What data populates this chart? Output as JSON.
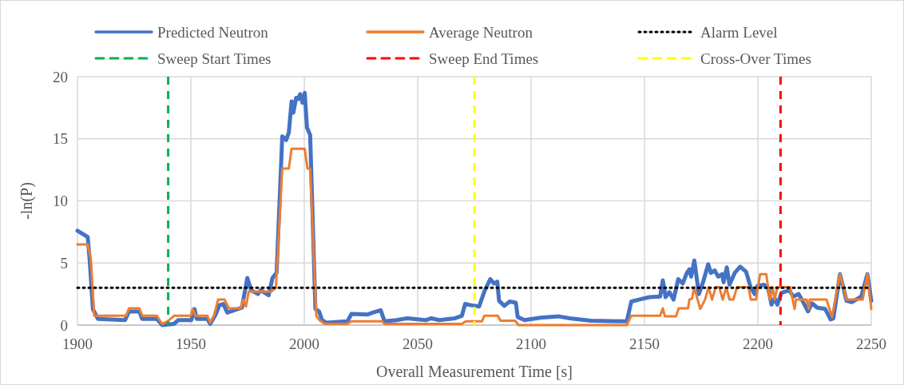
{
  "chart_data": {
    "type": "line",
    "xlabel": "Overall Measurement Time [s]",
    "ylabel": "-ln(P)",
    "xlim": [
      1900,
      2250
    ],
    "xticks": [
      1900,
      1950,
      2000,
      2050,
      2100,
      2150,
      2200,
      2250
    ],
    "ylim": [
      0,
      20
    ],
    "yticks": [
      0,
      5,
      10,
      15,
      20
    ],
    "grid": true,
    "legend": "top",
    "line_style": "solid",
    "marker": "none",
    "series": [
      {
        "name": "Predicted Neutron",
        "color": "#4472c4",
        "x": [
          1900,
          1904.5,
          1905.4,
          1906.8,
          1909,
          1921,
          1922.7,
          1927.3,
          1928.5,
          1935,
          1937.3,
          1942.6,
          1944.4,
          1950.2,
          1951.6,
          1952.6,
          1957.3,
          1958.5,
          1960.8,
          1962.6,
          1964.3,
          1966.1,
          1972.5,
          1974.9,
          1976.6,
          1979.6,
          1980.8,
          1984.3,
          1986,
          1987.8,
          1990.3,
          1992,
          1993.2,
          1994.4,
          1995.2,
          1996.4,
          1997.3,
          1998.2,
          1999.2,
          2000.2,
          2001.2,
          2002.6,
          2004.9,
          2006.5,
          2007.9,
          2009.6,
          2019,
          2020.8,
          2027.8,
          2030.2,
          2033.7,
          2035.4,
          2040.7,
          2045.4,
          2053.6,
          2056,
          2059.5,
          2066.5,
          2069.5,
          2070.9,
          2073.6,
          2077.1,
          2079.4,
          2082,
          2083.6,
          2085.1,
          2085.9,
          2088.2,
          2090.6,
          2093.3,
          2094.1,
          2097.1,
          2104.1,
          2112.3,
          2117,
          2126.4,
          2142.2,
          2144.2,
          2147.5,
          2152.2,
          2156.9,
          2158.1,
          2159.3,
          2161,
          2162.8,
          2164.9,
          2166.9,
          2168.7,
          2169.8,
          2170.6,
          2172,
          2174,
          2176,
          2178.1,
          2179.3,
          2181,
          2182.5,
          2184.2,
          2184.9,
          2186.3,
          2187.5,
          2189.8,
          2192.2,
          2194.8,
          2196.9,
          2198.6,
          2199.8,
          2202.7,
          2204.5,
          2206,
          2207.4,
          2208.6,
          2210.4,
          2213.9,
          2215.6,
          2218,
          2219.4,
          2222.1,
          2223.9,
          2226.2,
          2229.7,
          2232.1,
          2233.3,
          2236.2,
          2239.1,
          2241.5,
          2245.6,
          2248.3,
          2250
        ],
        "values": [
          7.6,
          7.1,
          5.2,
          1.3,
          0.5,
          0.4,
          1.1,
          1.1,
          0.5,
          0.5,
          0,
          0.1,
          0.4,
          0.4,
          1.3,
          0.5,
          0.5,
          0.1,
          0.8,
          1.6,
          1.7,
          1,
          1.4,
          3.8,
          2.8,
          2.5,
          2.8,
          2.4,
          3.8,
          4.2,
          15.2,
          14.9,
          15.5,
          18,
          17.1,
          18.3,
          18.2,
          18.6,
          17.9,
          18.7,
          15.9,
          15.3,
          1.3,
          1.1,
          0.4,
          0.2,
          0.3,
          0.9,
          0.85,
          1,
          1.2,
          0.3,
          0.4,
          0.55,
          0.4,
          0.55,
          0.4,
          0.55,
          0.75,
          1.7,
          1.6,
          1.5,
          2.7,
          3.7,
          3.35,
          3.5,
          1.95,
          1.55,
          1.9,
          1.8,
          0.65,
          0.4,
          0.6,
          0.7,
          0.55,
          0.35,
          0.3,
          1.9,
          2.05,
          2.25,
          2.3,
          3.6,
          2.25,
          2.65,
          2.05,
          3.7,
          3.35,
          4.2,
          4.5,
          3.9,
          5.2,
          2.5,
          3.55,
          4.9,
          4.2,
          4.4,
          3.9,
          4.1,
          3.45,
          4.65,
          3.25,
          4.2,
          4.7,
          4.3,
          3,
          2.5,
          3.15,
          3.25,
          3,
          1.65,
          2.15,
          1.65,
          2.6,
          2.8,
          2.3,
          2.5,
          2.05,
          1.1,
          1.75,
          1.4,
          1.3,
          0.45,
          0.55,
          4.1,
          1.95,
          1.85,
          2.3,
          4.1,
          1.95
        ]
      },
      {
        "name": "Average Neutron",
        "color": "#ed7d31",
        "x": [
          1900,
          1904.5,
          1905.9,
          1907.4,
          1921.5,
          1922.7,
          1927.3,
          1928.5,
          1935,
          1937.3,
          1939.7,
          1942.6,
          1950,
          1950.8,
          1952,
          1957.3,
          1958.5,
          1960.2,
          1962,
          1964.9,
          1966.7,
          1972,
          1973.2,
          1974.3,
          1975.5,
          1985.4,
          1987.5,
          1990.3,
          1993.2,
          1994.4,
          2000.2,
          2001.4,
          2002.6,
          2005.3,
          2006.7,
          2009,
          2019,
          2020.8,
          2034.3,
          2035.4,
          2069.5,
          2071.2,
          2078.3,
          2079.4,
          2085.3,
          2086.5,
          2092.9,
          2094.5,
          2142.2,
          2144.2,
          2156.9,
          2158.1,
          2159,
          2163.9,
          2165.1,
          2169.2,
          2169.8,
          2171,
          2171.9,
          2174.6,
          2176.7,
          2178.3,
          2179.8,
          2181.4,
          2183,
          2184.5,
          2186.1,
          2187.5,
          2189.2,
          2190.8,
          2195.9,
          2196.9,
          2199.2,
          2201,
          2203.7,
          2205.3,
          2206.5,
          2207.4,
          2208.6,
          2214.2,
          2216.2,
          2216.8,
          2221.5,
          2222.5,
          2222.9,
          2230.3,
          2232.7,
          2236.2,
          2239.1,
          2246.2,
          2248.3,
          2250
        ],
        "values": [
          6.5,
          6.5,
          5.3,
          0.75,
          0.75,
          1.35,
          1.35,
          0.75,
          0.75,
          0.1,
          0.3,
          0.75,
          0.75,
          1.3,
          0.75,
          0.75,
          0.2,
          0.75,
          2.05,
          2.05,
          1.35,
          1.35,
          2.05,
          1.5,
          2.7,
          2.7,
          3,
          12.6,
          12.6,
          14.2,
          14.2,
          12.6,
          12.6,
          0.75,
          0.4,
          0.1,
          0.1,
          0.3,
          0.3,
          0.1,
          0.1,
          0.3,
          0.3,
          0.75,
          0.75,
          0.35,
          0.35,
          0,
          0,
          0.75,
          0.75,
          1.35,
          0.7,
          0.7,
          1.35,
          1.35,
          2.05,
          2.15,
          3.05,
          1.3,
          2.05,
          3.05,
          2.05,
          3.05,
          3.05,
          2.05,
          3.05,
          2.05,
          2.05,
          3.05,
          3.05,
          2.05,
          2.05,
          4.1,
          4.1,
          2.05,
          3.05,
          2.05,
          3.05,
          3.05,
          1.3,
          2.05,
          2.05,
          1.3,
          2.05,
          2.05,
          0.65,
          4.1,
          2.05,
          2.05,
          4.1,
          1.3
        ]
      }
    ],
    "ref_lines": [
      {
        "axis": "y",
        "value": 3,
        "label": "Alarm Level",
        "color": "#000000",
        "line_style": "dotted"
      },
      {
        "axis": "x",
        "value": 1940,
        "label": "Sweep Start Times",
        "color": "#00b050",
        "line_style": "dashed"
      },
      {
        "axis": "x",
        "value": 2210,
        "label": "Sweep End Times",
        "color": "#ff0000",
        "line_style": "dashed"
      },
      {
        "axis": "x",
        "value": 2075,
        "label": "Cross-Over Times",
        "color": "#ffff00",
        "line_style": "dashed"
      }
    ]
  }
}
